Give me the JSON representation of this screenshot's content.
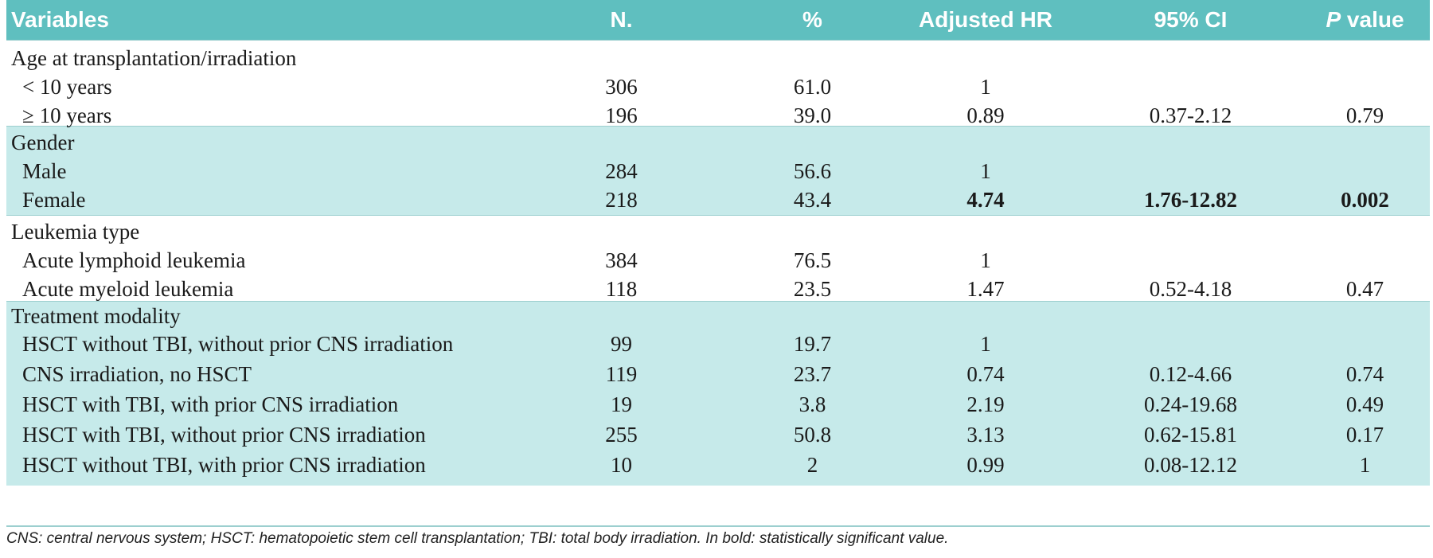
{
  "header": {
    "variables": "Variables",
    "n": "N.",
    "pct": "%",
    "hr": "Adjusted HR",
    "ci": "95% CI",
    "p_prefix": "P",
    "p_suffix": " value"
  },
  "groups": [
    {
      "title": "Age at transplantation/irradiation",
      "rows": [
        {
          "label": "< 10 years",
          "n": "306",
          "pct": "61.0",
          "hr": "1",
          "ci": "",
          "p": ""
        },
        {
          "label": "≥ 10 years",
          "n": "196",
          "pct": "39.0",
          "hr": "0.89",
          "ci": "0.37-2.12",
          "p": "0.79"
        }
      ]
    },
    {
      "title": "Gender",
      "rows": [
        {
          "label": "Male",
          "n": "284",
          "pct": "56.6",
          "hr": "1",
          "ci": "",
          "p": ""
        },
        {
          "label": "Female",
          "n": "218",
          "pct": "43.4",
          "hr": "4.74",
          "ci": "1.76-12.82",
          "p": "0.002"
        }
      ]
    },
    {
      "title": "Leukemia type",
      "rows": [
        {
          "label": "Acute lymphoid leukemia",
          "n": "384",
          "pct": "76.5",
          "hr": "1",
          "ci": "",
          "p": ""
        },
        {
          "label": "Acute myeloid leukemia",
          "n": "118",
          "pct": "23.5",
          "hr": "1.47",
          "ci": "0.52-4.18",
          "p": "0.47"
        }
      ]
    },
    {
      "title": "Treatment modality",
      "rows": [
        {
          "label": "HSCT without  TBI, without prior CNS irradiation",
          "n": "99",
          "pct": "19.7",
          "hr": "1",
          "ci": "",
          "p": ""
        },
        {
          "label": "CNS irradiation, no HSCT",
          "n": "119",
          "pct": "23.7",
          "hr": "0.74",
          "ci": "0.12-4.66",
          "p": "0.74"
        },
        {
          "label": "HSCT with TBI, with prior CNS irradiation",
          "n": "19",
          "pct": "3.8",
          "hr": "2.19",
          "ci": "0.24-19.68",
          "p": "0.49"
        },
        {
          "label": "HSCT with TBI, without prior CNS irradiation",
          "n": "255",
          "pct": "50.8",
          "hr": "3.13",
          "ci": "0.62-15.81",
          "p": "0.17"
        },
        {
          "label": "HSCT without TBI, with prior CNS irradiation",
          "n": "10",
          "pct": "2",
          "hr": "0.99",
          "ci": "0.08-12.12",
          "p": "1"
        }
      ]
    }
  ],
  "footnote": "CNS: central nervous system; HSCT: hematopoietic stem cell transplantation; TBI: total body irradiation. In bold: statistically significant value.",
  "colors": {
    "header_bg": "#5fbfbf",
    "shade_bg": "#c6eaea"
  }
}
